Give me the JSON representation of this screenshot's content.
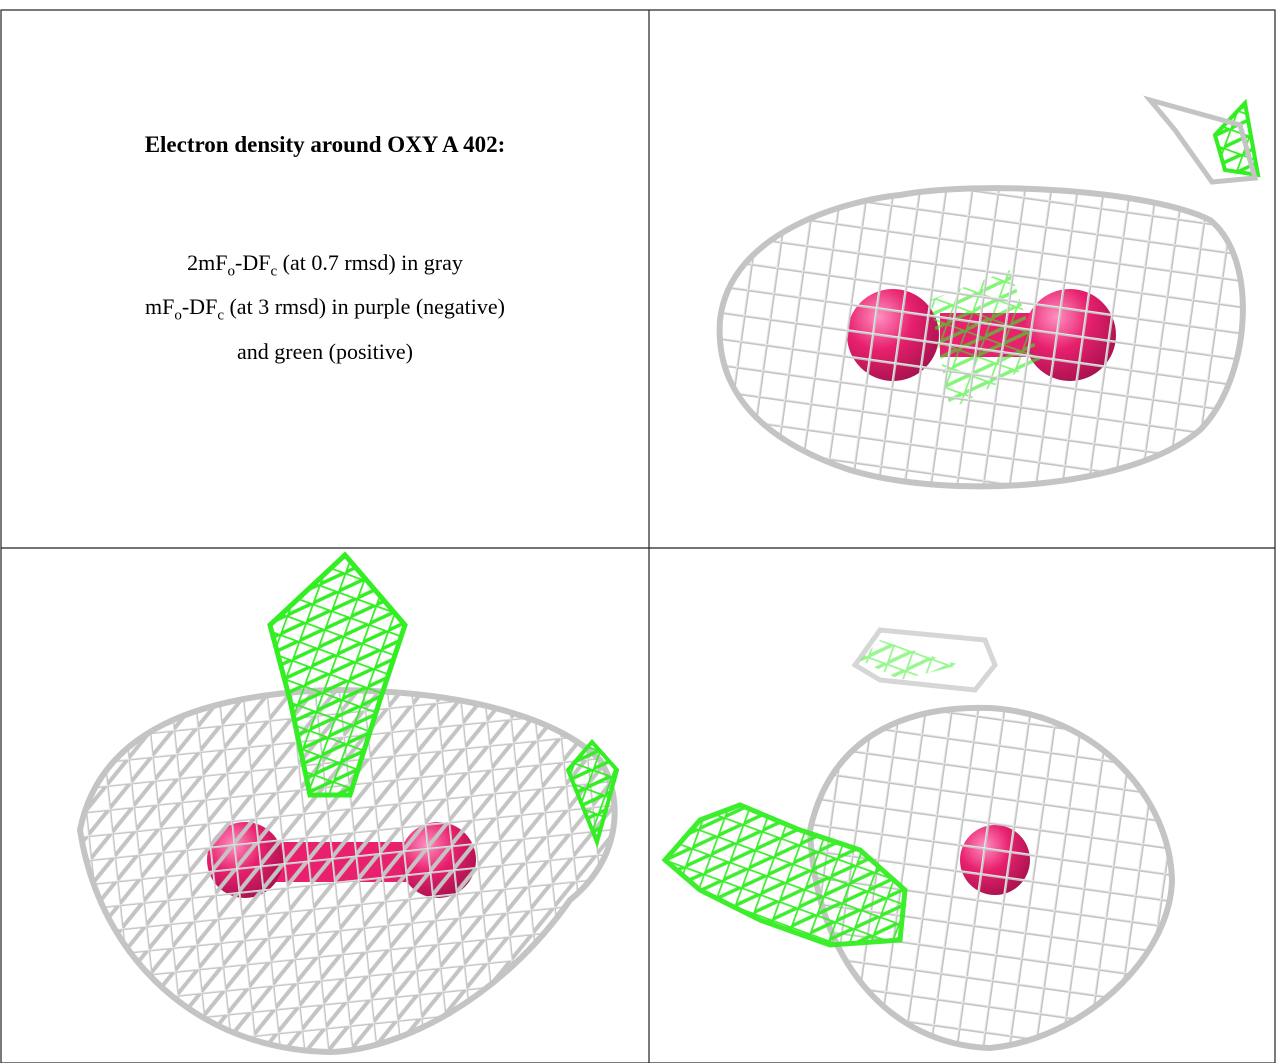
{
  "caption": {
    "title": "Electron density around OXY A 402:",
    "lines": [
      [
        {
          "text": "2mF"
        },
        {
          "sub": "o"
        },
        {
          "text": "-DF"
        },
        {
          "sub": "c"
        },
        {
          "text": " (at 0.7 rmsd) in gray"
        }
      ],
      [
        {
          "text": "mF"
        },
        {
          "sub": "o"
        },
        {
          "text": "-DF"
        },
        {
          "sub": "c"
        },
        {
          "text": " (at 3 rmsd) in purple (negative)"
        }
      ],
      [
        {
          "text": "and green (positive)"
        }
      ]
    ]
  }
}
